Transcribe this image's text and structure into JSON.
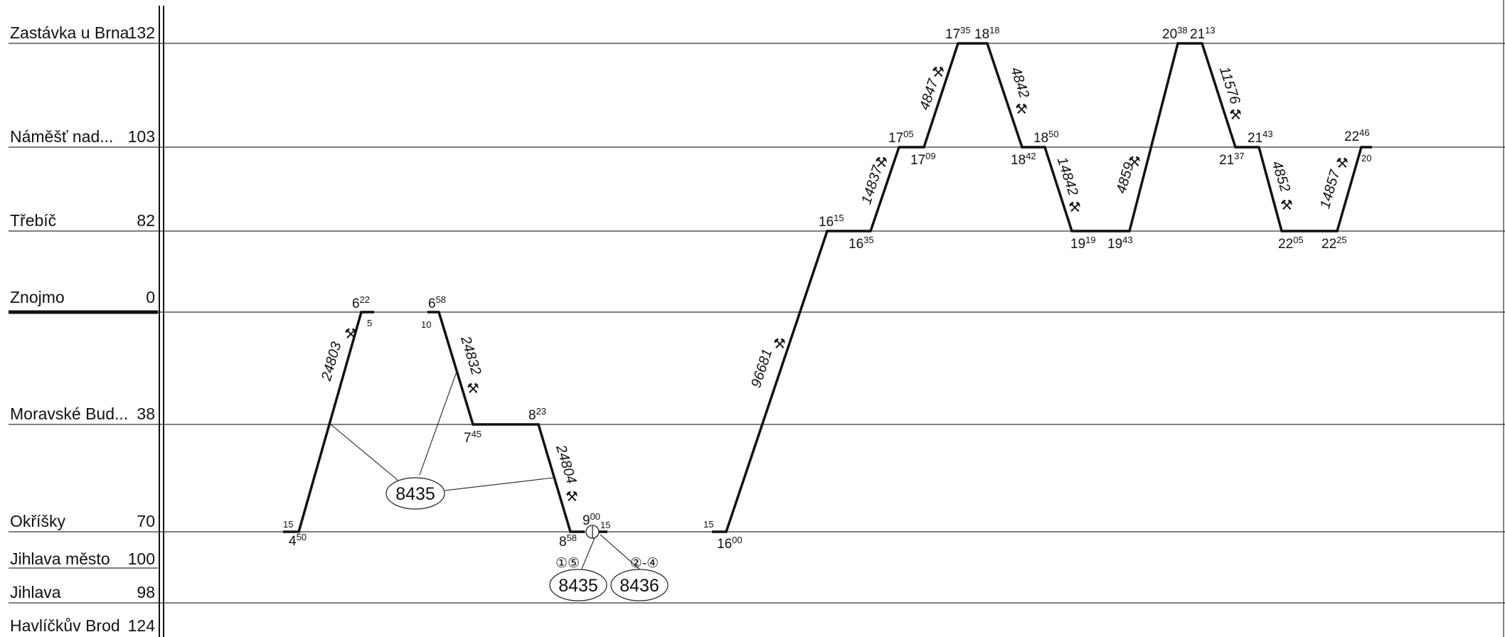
{
  "colors": {
    "line": "#111111",
    "grid": "#333333",
    "background": "#ffffff"
  },
  "stations": [
    {
      "name": "Zastávka u Brna",
      "km": "132",
      "bold_line": false
    },
    {
      "name": "Náměšť nad...",
      "km": "103",
      "bold_line": false
    },
    {
      "name": "Třebíč",
      "km": "82",
      "bold_line": false
    },
    {
      "name": "Znojmo",
      "km": "0",
      "bold_line": true
    },
    {
      "name": "Moravské Bud...",
      "km": "38",
      "bold_line": false
    },
    {
      "name": "Okříšky",
      "km": "70",
      "bold_line": false
    },
    {
      "name": "Jihlava město",
      "km": "100",
      "bold_line": false
    },
    {
      "name": "Jihlava",
      "km": "98",
      "bold_line": false
    },
    {
      "name": "Havlíčkův Brod",
      "km": "124",
      "bold_line": false
    }
  ],
  "trains": [
    {
      "number": "24803",
      "icon": "⚒"
    },
    {
      "number": "24832",
      "icon": "⚒"
    },
    {
      "number": "24804",
      "icon": "⚒"
    },
    {
      "number": "96681",
      "icon": "⚒"
    },
    {
      "number": "14837",
      "icon": "⚒"
    },
    {
      "number": "4847",
      "icon": "⚒"
    },
    {
      "number": "4842",
      "icon": "⚒"
    },
    {
      "number": "14842",
      "icon": "⚒"
    },
    {
      "number": "4859",
      "icon": "⚒"
    },
    {
      "number": "11576",
      "icon": "⚒"
    },
    {
      "number": "4852",
      "icon": "⚒"
    },
    {
      "number": "14857",
      "icon": "⚒"
    }
  ],
  "times": [
    {
      "h": "4",
      "m": "50"
    },
    {
      "h": "6",
      "m": "22"
    },
    {
      "h": "6",
      "m": "58"
    },
    {
      "h": "7",
      "m": "45"
    },
    {
      "h": "8",
      "m": "23"
    },
    {
      "h": "8",
      "m": "58"
    },
    {
      "h": "9",
      "m": "00"
    },
    {
      "h": "16",
      "m": "00"
    },
    {
      "h": "16",
      "m": "15"
    },
    {
      "h": "16",
      "m": "35"
    },
    {
      "h": "17",
      "m": "05"
    },
    {
      "h": "17",
      "m": "09"
    },
    {
      "h": "17",
      "m": "35"
    },
    {
      "h": "18",
      "m": "18"
    },
    {
      "h": "18",
      "m": "42"
    },
    {
      "h": "18",
      "m": "50"
    },
    {
      "h": "19",
      "m": "19"
    },
    {
      "h": "19",
      "m": "43"
    },
    {
      "h": "20",
      "m": "38"
    },
    {
      "h": "21",
      "m": "13"
    },
    {
      "h": "21",
      "m": "37"
    },
    {
      "h": "21",
      "m": "43"
    },
    {
      "h": "22",
      "m": "05"
    },
    {
      "h": "22",
      "m": "25"
    },
    {
      "h": "22",
      "m": "46"
    }
  ],
  "small_minutes": [
    "15",
    "5",
    "10",
    "15",
    "15",
    "20"
  ],
  "groups": [
    {
      "label": "8435"
    },
    {
      "label": "8435",
      "days": "①⑤"
    },
    {
      "label": "8436",
      "days": "②-④"
    }
  ]
}
